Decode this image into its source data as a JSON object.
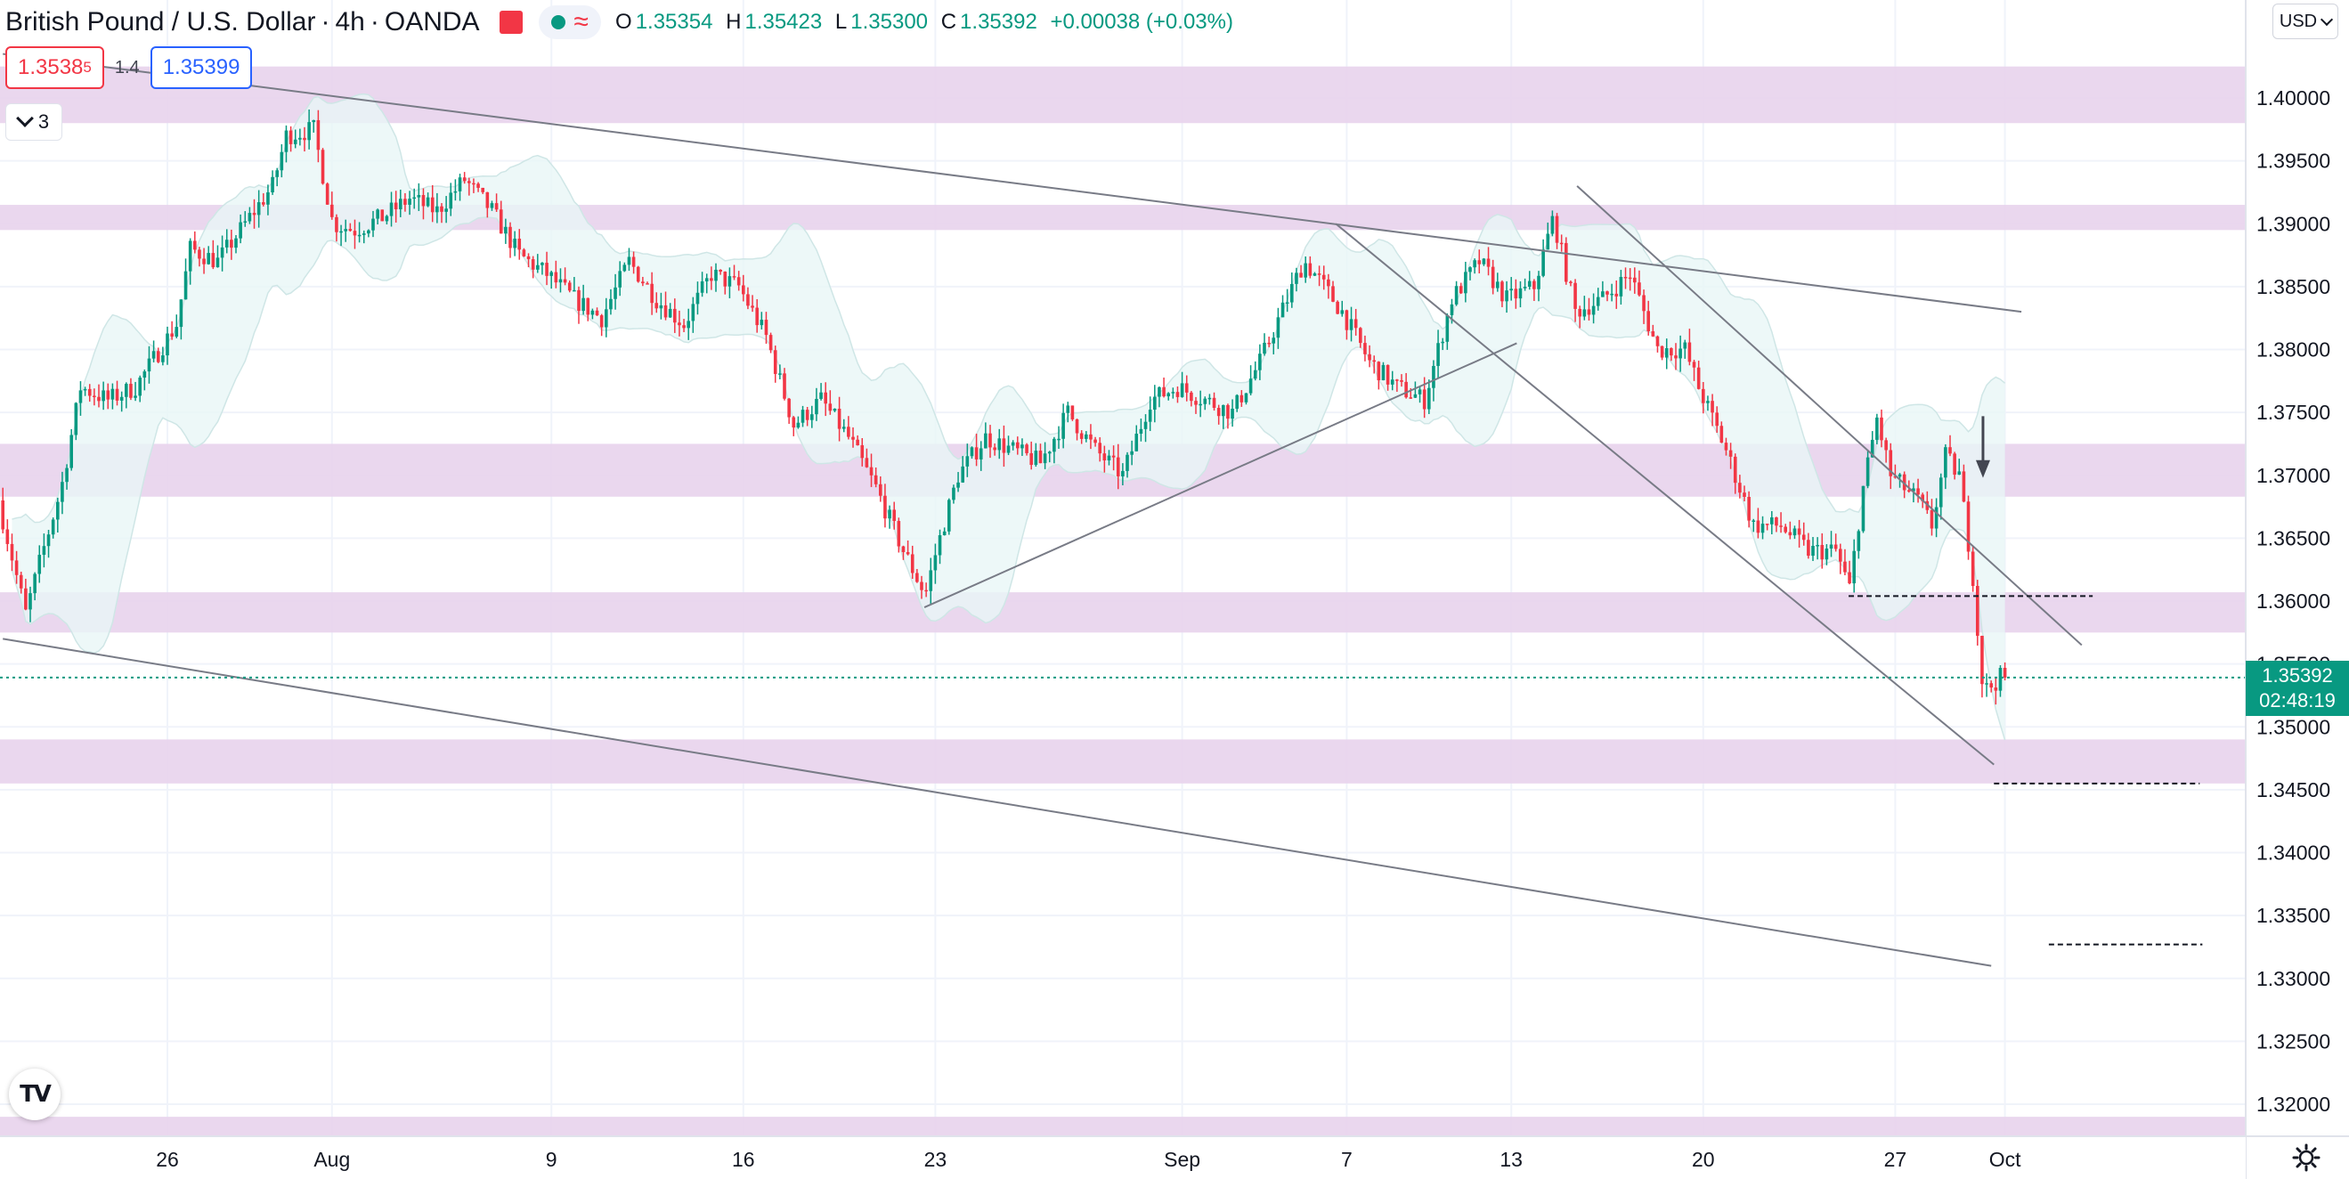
{
  "header": {
    "symbol": "British Pound / U.S. Dollar",
    "interval": "4h",
    "exchange": "OANDA",
    "ohlc": {
      "o": "1.35354",
      "h": "1.35423",
      "l": "1.35300",
      "c": "1.35392",
      "change": "+0.00038 (+0.03%)"
    }
  },
  "trade": {
    "sell_main": "1.3538",
    "sell_sup": "5",
    "spread": "1.4",
    "buy": "1.35399"
  },
  "indicators_count": "3",
  "currency": "USD",
  "last_price": {
    "value": "1.35392",
    "countdown": "02:48:19"
  },
  "colors": {
    "up": "#089981",
    "down": "#f23645",
    "zone": "#e8d3ec",
    "bb_fill": "#e8f6f6"
  },
  "chart_data": {
    "type": "candlestick",
    "title": "British Pound / U.S. Dollar · 4h · OANDA",
    "xlabel": "",
    "ylabel": "",
    "y_ticks": [
      "1.40000",
      "1.39500",
      "1.39000",
      "1.38500",
      "1.38000",
      "1.37500",
      "1.37000",
      "1.36500",
      "1.36000",
      "1.35500",
      "1.35000",
      "1.34500",
      "1.34000",
      "1.33500",
      "1.33000",
      "1.32500",
      "1.32000"
    ],
    "x_ticks": [
      {
        "label": "26",
        "day": 0
      },
      {
        "label": "Aug",
        "day": 6
      },
      {
        "label": "9",
        "day": 14
      },
      {
        "label": "16",
        "day": 21
      },
      {
        "label": "23",
        "day": 28
      },
      {
        "label": "Sep",
        "day": 37
      },
      {
        "label": "7",
        "day": 43
      },
      {
        "label": "13",
        "day": 49
      },
      {
        "label": "20",
        "day": 56
      },
      {
        "label": "27",
        "day": 63
      },
      {
        "label": "Oct",
        "day": 67
      }
    ],
    "price_path": [
      [
        -6.0,
        1.368
      ],
      [
        -5.0,
        1.359
      ],
      [
        -4.5,
        1.363
      ],
      [
        -3.7,
        1.369
      ],
      [
        -3.0,
        1.377
      ],
      [
        -2.0,
        1.376
      ],
      [
        -1.0,
        1.377
      ],
      [
        0.5,
        1.382
      ],
      [
        1.0,
        1.388
      ],
      [
        2.0,
        1.387
      ],
      [
        3.0,
        1.39
      ],
      [
        4.0,
        1.393
      ],
      [
        4.5,
        1.397
      ],
      [
        5.5,
        1.3975
      ],
      [
        6.2,
        1.39
      ],
      [
        7.0,
        1.3895
      ],
      [
        8.0,
        1.3905
      ],
      [
        9.0,
        1.392
      ],
      [
        10.0,
        1.391
      ],
      [
        11.0,
        1.3935
      ],
      [
        12.0,
        1.391
      ],
      [
        13.0,
        1.3875
      ],
      [
        14.0,
        1.386
      ],
      [
        15.0,
        1.384
      ],
      [
        16.0,
        1.3825
      ],
      [
        17.0,
        1.387
      ],
      [
        18.0,
        1.384
      ],
      [
        19.0,
        1.382
      ],
      [
        20.0,
        1.386
      ],
      [
        21.0,
        1.385
      ],
      [
        22.0,
        1.381
      ],
      [
        23.0,
        1.374
      ],
      [
        24.0,
        1.376
      ],
      [
        25.0,
        1.373
      ],
      [
        26.0,
        1.369
      ],
      [
        27.0,
        1.364
      ],
      [
        27.8,
        1.3605
      ],
      [
        28.2,
        1.364
      ],
      [
        29.0,
        1.37
      ],
      [
        30.0,
        1.373
      ],
      [
        31.0,
        1.372
      ],
      [
        32.0,
        1.371
      ],
      [
        33.0,
        1.375
      ],
      [
        34.0,
        1.372
      ],
      [
        35.0,
        1.37
      ],
      [
        36.0,
        1.376
      ],
      [
        37.0,
        1.377
      ],
      [
        38.0,
        1.376
      ],
      [
        39.0,
        1.375
      ],
      [
        40.0,
        1.379
      ],
      [
        41.0,
        1.384
      ],
      [
        41.6,
        1.387
      ],
      [
        42.0,
        1.386
      ],
      [
        43.0,
        1.383
      ],
      [
        44.0,
        1.379
      ],
      [
        45.0,
        1.377
      ],
      [
        46.0,
        1.376
      ],
      [
        47.0,
        1.384
      ],
      [
        48.0,
        1.387
      ],
      [
        49.0,
        1.384
      ],
      [
        50.0,
        1.385
      ],
      [
        50.7,
        1.3905
      ],
      [
        51.5,
        1.383
      ],
      [
        52.5,
        1.384
      ],
      [
        53.5,
        1.386
      ],
      [
        54.5,
        1.38
      ],
      [
        55.5,
        1.38
      ],
      [
        56.0,
        1.377
      ],
      [
        57.0,
        1.372
      ],
      [
        58.0,
        1.366
      ],
      [
        59.0,
        1.366
      ],
      [
        60.0,
        1.364
      ],
      [
        61.0,
        1.364
      ],
      [
        61.5,
        1.361
      ],
      [
        62.0,
        1.369
      ],
      [
        62.5,
        1.3745
      ],
      [
        63.0,
        1.37
      ],
      [
        64.0,
        1.368
      ],
      [
        64.5,
        1.366
      ],
      [
        65.0,
        1.3715
      ],
      [
        65.5,
        1.37
      ],
      [
        66.0,
        1.362
      ],
      [
        66.3,
        1.354
      ],
      [
        66.5,
        1.353
      ],
      [
        67.0,
        1.3539
      ]
    ],
    "zones": [
      [
        1.398,
        1.4025
      ],
      [
        1.3895,
        1.3915
      ],
      [
        1.3683,
        1.3725
      ],
      [
        1.3575,
        1.3607
      ],
      [
        1.3455,
        1.349
      ],
      [
        1.3175,
        1.319
      ]
    ],
    "last_price": 1.35392
  }
}
